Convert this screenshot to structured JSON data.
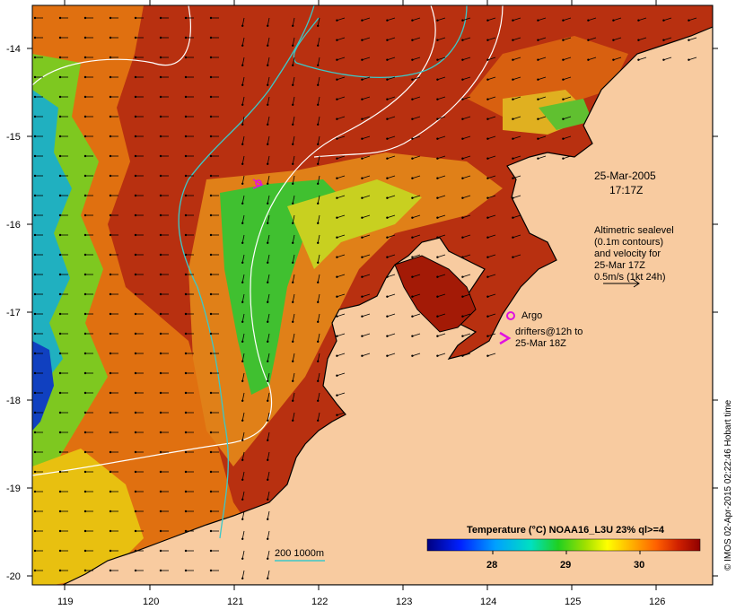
{
  "map": {
    "lat_labels": [
      "-14",
      "-15",
      "-16",
      "-17",
      "-18",
      "-19",
      "-20"
    ],
    "lon_labels": [
      "119",
      "120",
      "121",
      "122",
      "123",
      "124",
      "125",
      "126"
    ],
    "timestamp_line1": "25-Mar-2005",
    "timestamp_line2": "17:17Z",
    "altimetry_lines": [
      "Altimetric sealevel",
      "(0.1m contours)",
      "and velocity for",
      "25-Mar 17Z",
      "0.5m/s (1kt 24h)"
    ],
    "argo_label": "Argo",
    "drifters_line1": "drifters@12h to",
    "drifters_line2": "25-Mar 18Z",
    "isobath_label": "200  1000m",
    "colorbar_title": "Temperature (°C) NOAA16_L3U 23% ql>=4",
    "colorbar_ticks": [
      "28",
      "29",
      "30"
    ],
    "credit": "© IMOS 02-Apr-2015 02:22:46 Hobart time",
    "colors": {
      "land": "#f8cba0",
      "warm": "#a31a06",
      "isobath_1000": "#3cc8c8",
      "argo": "#e010e0",
      "drifter": "#e010e0"
    }
  }
}
